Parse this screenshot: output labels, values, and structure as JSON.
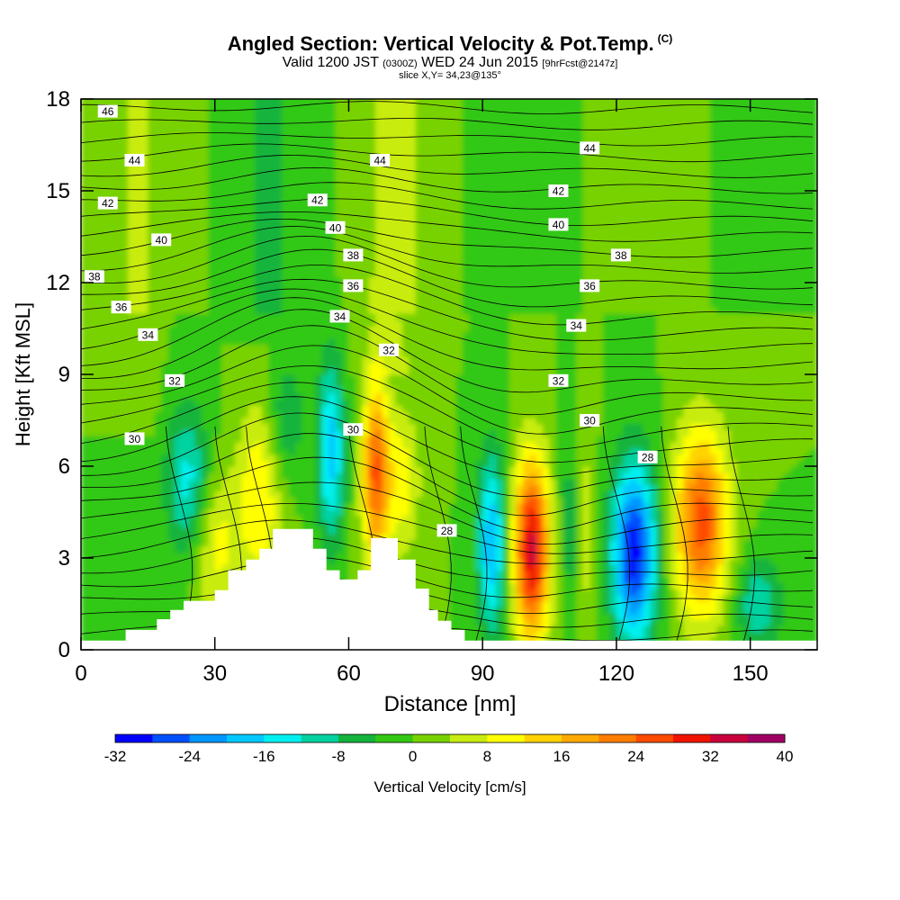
{
  "chart_data": {
    "type": "heatmap",
    "title": "Angled Section: Vertical Velocity & Pot.Temp.",
    "title_unit": "(C)",
    "subtitle_valid": "Valid 1200 JST",
    "subtitle_utc": "(0300Z)",
    "subtitle_date": "WED 24 Jun 2015",
    "subtitle_fcst": "[9hrFcst@2147z]",
    "subtitle_slice": "slice X,Y= 34,23@135°",
    "xlabel": "Distance [nm]",
    "ylabel": "Height [Kft MSL]",
    "xlim": [
      0,
      165
    ],
    "ylim": [
      0,
      18
    ],
    "xticks": [
      0,
      30,
      60,
      90,
      120,
      150
    ],
    "yticks": [
      0,
      3,
      6,
      9,
      12,
      15,
      18
    ],
    "colorbar": {
      "label": "Vertical Velocity [cm/s]",
      "ticks": [
        -32,
        -24,
        -16,
        -8,
        0,
        8,
        16,
        24,
        32,
        40
      ],
      "levels": [
        -32,
        -28,
        -24,
        -20,
        -16,
        -12,
        -8,
        -4,
        0,
        4,
        8,
        12,
        16,
        20,
        24,
        28,
        32,
        36,
        40
      ],
      "colors": [
        "#0000ff",
        "#0050ff",
        "#0096ff",
        "#00c8ff",
        "#00f0f0",
        "#00d2a0",
        "#14b43c",
        "#32c814",
        "#78d200",
        "#c8ec10",
        "#ffff00",
        "#ffd200",
        "#ffaa00",
        "#ff7d00",
        "#ff4b00",
        "#f01400",
        "#c8003c",
        "#a00064",
        "#780096"
      ]
    },
    "terrain": [
      [
        0,
        0.3
      ],
      [
        10,
        0.3
      ],
      [
        10,
        0.65
      ],
      [
        17,
        0.65
      ],
      [
        17,
        1.0
      ],
      [
        20,
        1.0
      ],
      [
        20,
        1.3
      ],
      [
        23,
        1.3
      ],
      [
        23,
        1.6
      ],
      [
        30,
        1.6
      ],
      [
        30,
        1.95
      ],
      [
        33,
        1.95
      ],
      [
        33,
        2.6
      ],
      [
        37,
        2.6
      ],
      [
        37,
        2.95
      ],
      [
        40,
        2.95
      ],
      [
        40,
        3.3
      ],
      [
        43,
        3.3
      ],
      [
        43,
        3.95
      ],
      [
        52,
        3.95
      ],
      [
        52,
        3.3
      ],
      [
        55,
        3.3
      ],
      [
        55,
        2.6
      ],
      [
        58,
        2.6
      ],
      [
        58,
        2.3
      ],
      [
        62,
        2.3
      ],
      [
        62,
        2.6
      ],
      [
        65,
        2.6
      ],
      [
        65,
        3.65
      ],
      [
        71,
        3.65
      ],
      [
        71,
        2.95
      ],
      [
        75,
        2.95
      ],
      [
        75,
        2.0
      ],
      [
        78,
        2.0
      ],
      [
        78,
        1.3
      ],
      [
        80,
        1.3
      ],
      [
        80,
        0.95
      ],
      [
        83,
        0.95
      ],
      [
        83,
        0.65
      ],
      [
        86,
        0.65
      ],
      [
        86,
        0.3
      ],
      [
        165,
        0.3
      ]
    ],
    "vertical_velocity_features": [
      {
        "x": 24,
        "z": 5.5,
        "w": -14,
        "shape": [
          5,
          2.5
        ]
      },
      {
        "x": 30,
        "z": 3.5,
        "w": 10,
        "shape": [
          5,
          2.5
        ]
      },
      {
        "x": 40,
        "z": 5.0,
        "w": 12,
        "shape": [
          5,
          3.0
        ]
      },
      {
        "x": 46,
        "z": 7.5,
        "w": -8,
        "shape": [
          4,
          2.0
        ]
      },
      {
        "x": 56,
        "z": 6.5,
        "w": -18,
        "shape": [
          3,
          3.0
        ]
      },
      {
        "x": 66,
        "z": 5.8,
        "w": 25,
        "shape": [
          3,
          3.0
        ]
      },
      {
        "x": 72,
        "z": 5.5,
        "w": 10,
        "shape": [
          4,
          2.5
        ]
      },
      {
        "x": 92,
        "z": 3.5,
        "w": -20,
        "shape": [
          3,
          3.0
        ]
      },
      {
        "x": 101,
        "z": 3.3,
        "w": 33,
        "shape": [
          4,
          3.0
        ]
      },
      {
        "x": 110,
        "z": 4.0,
        "w": -8,
        "shape": [
          2.5,
          3.0
        ]
      },
      {
        "x": 113,
        "z": 4.0,
        "w": 8,
        "shape": [
          2.5,
          3.0
        ]
      },
      {
        "x": 124,
        "z": 3.2,
        "w": -30,
        "shape": [
          5,
          3.0
        ]
      },
      {
        "x": 139,
        "z": 4.2,
        "w": 26,
        "shape": [
          6,
          3.0
        ]
      },
      {
        "x": 152,
        "z": 1.5,
        "w": -12,
        "shape": [
          5,
          1.5
        ]
      }
    ],
    "theta_contour_labels": [
      {
        "x": 6,
        "z": 17.6,
        "t": "46"
      },
      {
        "x": 12,
        "z": 16.0,
        "t": "44"
      },
      {
        "x": 6,
        "z": 14.6,
        "t": "42"
      },
      {
        "x": 18,
        "z": 13.4,
        "t": "40"
      },
      {
        "x": 3,
        "z": 12.2,
        "t": "38"
      },
      {
        "x": 9,
        "z": 11.2,
        "t": "36"
      },
      {
        "x": 15,
        "z": 10.3,
        "t": "34"
      },
      {
        "x": 21,
        "z": 8.8,
        "t": "32"
      },
      {
        "x": 12,
        "z": 6.9,
        "t": "30"
      },
      {
        "x": 53,
        "z": 14.7,
        "t": "42"
      },
      {
        "x": 57,
        "z": 13.8,
        "t": "40"
      },
      {
        "x": 61,
        "z": 12.9,
        "t": "38"
      },
      {
        "x": 61,
        "z": 11.9,
        "t": "36"
      },
      {
        "x": 58,
        "z": 10.9,
        "t": "34"
      },
      {
        "x": 67,
        "z": 16.0,
        "t": "44"
      },
      {
        "x": 69,
        "z": 9.8,
        "t": "32"
      },
      {
        "x": 61,
        "z": 7.2,
        "t": "30"
      },
      {
        "x": 82,
        "z": 3.9,
        "t": "28"
      },
      {
        "x": 107,
        "z": 15.0,
        "t": "42"
      },
      {
        "x": 107,
        "z": 13.9,
        "t": "40"
      },
      {
        "x": 114,
        "z": 16.4,
        "t": "44"
      },
      {
        "x": 121,
        "z": 12.9,
        "t": "38"
      },
      {
        "x": 114,
        "z": 11.9,
        "t": "36"
      },
      {
        "x": 111,
        "z": 10.6,
        "t": "34"
      },
      {
        "x": 107,
        "z": 8.8,
        "t": "32"
      },
      {
        "x": 114,
        "z": 7.5,
        "t": "30"
      },
      {
        "x": 127,
        "z": 6.3,
        "t": "28"
      }
    ]
  }
}
